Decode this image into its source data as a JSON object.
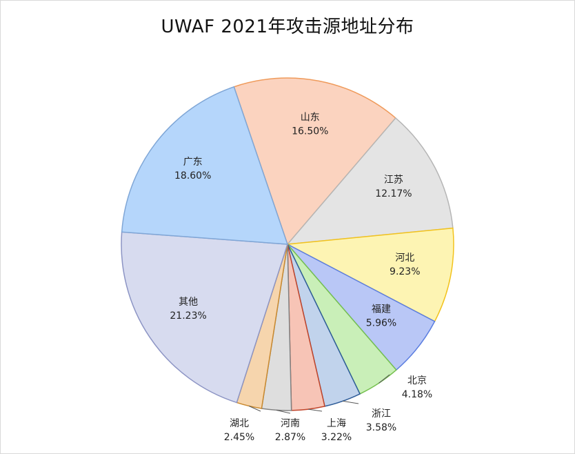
{
  "chart_data": {
    "type": "pie",
    "title": "UWAF 2021年攻击源地址分布",
    "slices": [
      {
        "name": "山东",
        "value": 16.5,
        "label": "16.50%",
        "color": "#fbd3bf",
        "stroke": "#ef9a5a"
      },
      {
        "name": "江苏",
        "value": 12.17,
        "label": "12.17%",
        "color": "#e4e4e4",
        "stroke": "#b5b5b5"
      },
      {
        "name": "河北",
        "value": 9.23,
        "label": "9.23%",
        "color": "#fdf4b3",
        "stroke": "#f2c21c"
      },
      {
        "name": "福建",
        "value": 5.96,
        "label": "5.96%",
        "color": "#b9c7f6",
        "stroke": "#5a7de0"
      },
      {
        "name": "北京",
        "value": 4.18,
        "label": "4.18%",
        "color": "#c9efb8",
        "stroke": "#75c04e"
      },
      {
        "name": "浙江",
        "value": 3.58,
        "label": "3.58%",
        "color": "#c1d3ec",
        "stroke": "#2e5c98"
      },
      {
        "name": "上海",
        "value": 3.22,
        "label": "3.22%",
        "color": "#f7c4b6",
        "stroke": "#c0442a"
      },
      {
        "name": "河南",
        "value": 2.87,
        "label": "2.87%",
        "color": "#dedede",
        "stroke": "#808080"
      },
      {
        "name": "湖北",
        "value": 2.45,
        "label": "2.45%",
        "color": "#f6d5ad",
        "stroke": "#c9892e"
      },
      {
        "name": "其他",
        "value": 21.23,
        "label": "21.23%",
        "color": "#d7dbef",
        "stroke": "#8c94c4"
      },
      {
        "name": "广东",
        "value": 18.6,
        "label": "18.60%",
        "color": "#b5d6fb",
        "stroke": "#7fa6d6"
      }
    ]
  }
}
